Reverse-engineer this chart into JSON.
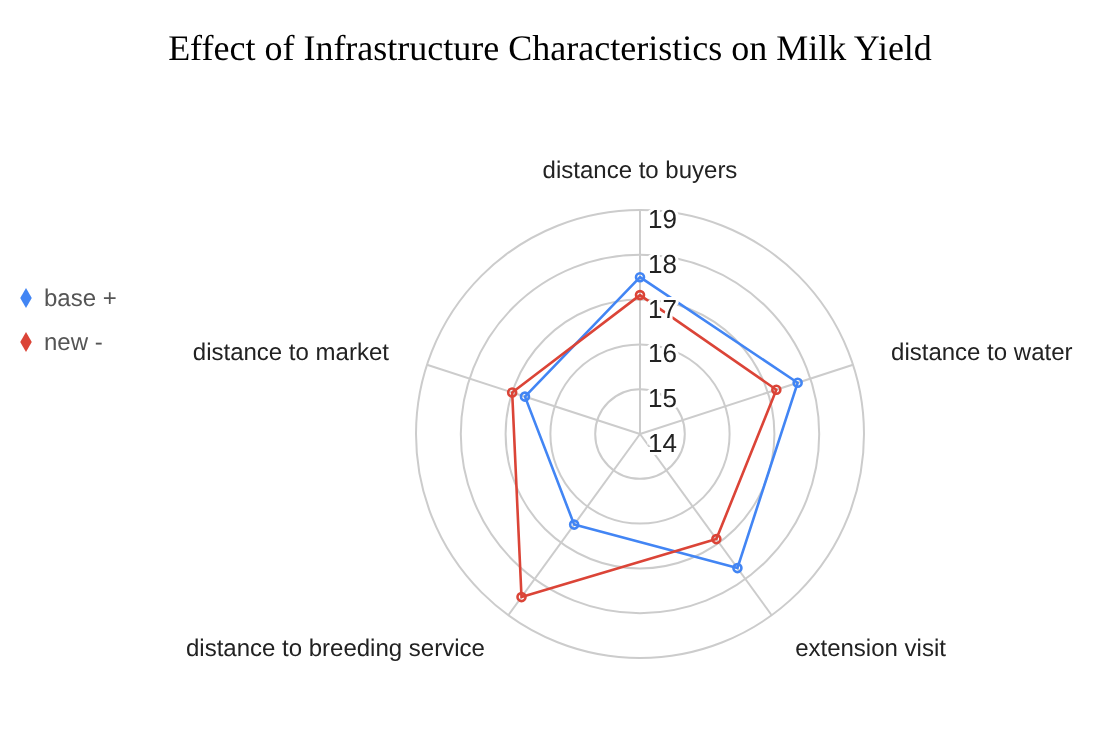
{
  "chart_data": {
    "type": "radar",
    "title": "Effect of Infrastructure Characteristics on Milk Yield",
    "categories": [
      "distance to buyers",
      "distance to water",
      "extension visit",
      "distance to breeding service",
      "distance to market"
    ],
    "series": [
      {
        "name": "base +",
        "color": "#4285f4",
        "values": [
          17.5,
          17.7,
          17.7,
          16.5,
          16.7
        ]
      },
      {
        "name": "new -",
        "color": "#db4437",
        "values": [
          17.1,
          17.2,
          16.9,
          18.5,
          17.0
        ]
      }
    ],
    "ylim": [
      14,
      19
    ],
    "yticks": [
      14,
      15,
      16,
      17,
      18,
      19
    ],
    "grid": true,
    "legend": "left",
    "marker": "circle",
    "line_style": "solid"
  }
}
